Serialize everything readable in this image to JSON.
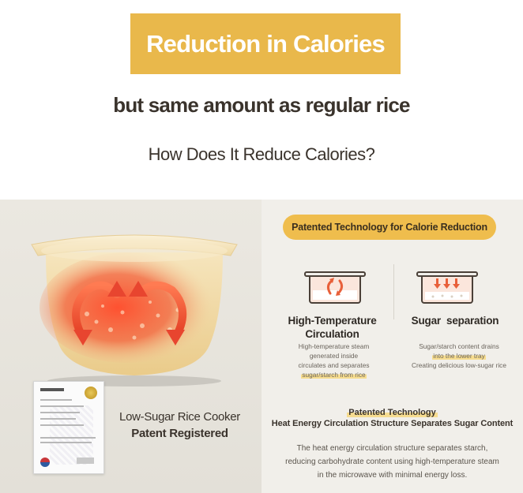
{
  "header": {
    "title": "Reduction in Calories",
    "subtitle": "but same amount as regular rice",
    "question": "How Does It Reduce Calories?"
  },
  "left_panel": {
    "patent_line1": "Low-Sugar Rice Cooker",
    "patent_line2": "Patent Registered"
  },
  "right_panel": {
    "pill_label": "Patented Technology for Calorie Reduction",
    "feature_left": {
      "title_line1": "High-Temperature",
      "title_line2": "Circulation",
      "desc_line1": "High-temperature steam",
      "desc_line2": "generated inside",
      "desc_line3": "circulates and separates",
      "desc_highlight": "sugar/starch from rice"
    },
    "feature_right": {
      "title": "Sugar  separation",
      "desc_line1": "Sugar/starch content drains",
      "desc_highlight": "into the lower tray",
      "desc_line3": "Creating delicious low-sugar rice"
    },
    "patented_tech_label": "Patented Technology",
    "patented_tech_heading": "Heat Energy Circulation Structure Separates Sugar Content",
    "body_line1": "The heat energy circulation structure separates starch,",
    "body_line2": "reducing carbohydrate content using high-temperature steam",
    "body_line3": "in the microwave with minimal energy loss."
  },
  "colors": {
    "accent": "#e9b84b",
    "pill": "#efbd4d",
    "heat_red": "#e8452f",
    "pot_cream": "#f3dfb0"
  },
  "icons": {
    "pot": "rice-pot-illustration",
    "certificate": "patent-certificate",
    "circulation": "steam-circulation-icon",
    "separation": "sugar-separation-icon"
  }
}
